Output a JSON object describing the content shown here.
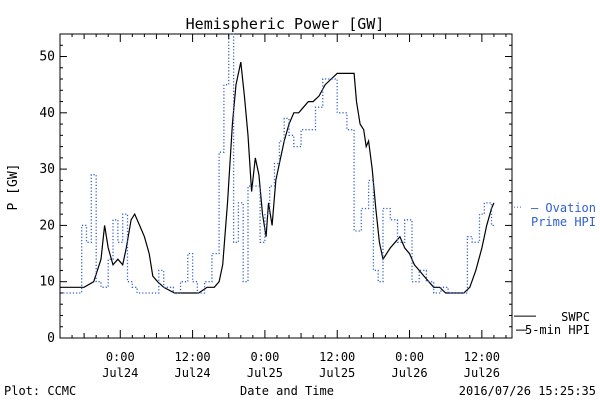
{
  "chart_data": {
    "type": "line",
    "title": "Hemispheric Power [GW]",
    "xlabel": "Date and Time",
    "ylabel": "P [GW]",
    "ylim": [
      0,
      54
    ],
    "y_ticks": [
      0,
      10,
      20,
      30,
      40,
      50
    ],
    "x_domain_hours": [
      -5,
      32.5
    ],
    "x_ticks": [
      {
        "t": 0,
        "time": "0:00",
        "date": "Jul24"
      },
      {
        "t": 6,
        "time": "12:00",
        "date": "Jul24"
      },
      {
        "t": 12,
        "time": "0:00",
        "date": "Jul25"
      },
      {
        "t": 18,
        "time": "12:00",
        "date": "Jul25"
      },
      {
        "t": 24,
        "time": "0:00",
        "date": "Jul26"
      },
      {
        "t": 30,
        "time": "12:00",
        "date": "Jul26"
      }
    ],
    "grid": false,
    "series": [
      {
        "name": "SWPC 5-min HPI",
        "color": "#000000",
        "style": "solid",
        "points": [
          [
            -5.0,
            9
          ],
          [
            -3.0,
            9
          ],
          [
            -2.2,
            10
          ],
          [
            -1.6,
            14
          ],
          [
            -1.3,
            20
          ],
          [
            -1.0,
            16
          ],
          [
            -0.6,
            13
          ],
          [
            -0.2,
            14
          ],
          [
            0.2,
            13
          ],
          [
            0.5,
            16
          ],
          [
            0.9,
            21
          ],
          [
            1.2,
            22
          ],
          [
            1.6,
            20
          ],
          [
            2.0,
            18
          ],
          [
            2.4,
            15
          ],
          [
            2.7,
            11
          ],
          [
            3.1,
            10
          ],
          [
            3.6,
            9
          ],
          [
            4.5,
            8
          ],
          [
            5.5,
            8
          ],
          [
            6.5,
            8
          ],
          [
            7.2,
            9
          ],
          [
            7.8,
            9
          ],
          [
            8.2,
            10
          ],
          [
            8.5,
            13
          ],
          [
            8.9,
            24
          ],
          [
            9.3,
            38
          ],
          [
            9.6,
            45
          ],
          [
            9.9,
            48
          ],
          [
            10.0,
            49
          ],
          [
            10.3,
            43
          ],
          [
            10.6,
            36
          ],
          [
            10.9,
            26
          ],
          [
            11.2,
            32
          ],
          [
            11.5,
            29
          ],
          [
            11.8,
            22
          ],
          [
            12.1,
            18
          ],
          [
            12.3,
            24
          ],
          [
            12.6,
            20
          ],
          [
            12.9,
            28
          ],
          [
            13.2,
            31
          ],
          [
            13.6,
            35
          ],
          [
            14.0,
            38
          ],
          [
            14.4,
            40
          ],
          [
            14.8,
            40
          ],
          [
            15.2,
            41
          ],
          [
            15.6,
            42
          ],
          [
            16.0,
            42
          ],
          [
            16.5,
            43
          ],
          [
            17.0,
            45
          ],
          [
            17.5,
            46
          ],
          [
            18.0,
            47
          ],
          [
            18.5,
            47
          ],
          [
            19.4,
            47
          ],
          [
            19.6,
            42
          ],
          [
            19.9,
            38
          ],
          [
            20.2,
            37
          ],
          [
            20.4,
            34
          ],
          [
            20.6,
            35
          ],
          [
            20.9,
            30
          ],
          [
            21.2,
            23
          ],
          [
            21.5,
            17
          ],
          [
            21.8,
            14
          ],
          [
            22.1,
            15
          ],
          [
            22.4,
            16
          ],
          [
            22.8,
            17
          ],
          [
            23.2,
            18
          ],
          [
            23.6,
            16
          ],
          [
            24.0,
            15
          ],
          [
            24.4,
            13
          ],
          [
            24.8,
            12
          ],
          [
            25.2,
            11
          ],
          [
            25.6,
            10
          ],
          [
            26.0,
            9
          ],
          [
            26.5,
            9
          ],
          [
            27.0,
            8
          ],
          [
            28.5,
            8
          ],
          [
            29.0,
            9
          ],
          [
            29.5,
            12
          ],
          [
            30.0,
            16
          ],
          [
            30.4,
            20
          ],
          [
            30.8,
            23
          ],
          [
            31.0,
            24
          ]
        ]
      },
      {
        "name": "Ovation Prime HPI",
        "color": "#3060d0",
        "style": "dotted",
        "points": [
          [
            -5.0,
            8
          ],
          [
            -3.2,
            8
          ],
          [
            -3.2,
            20
          ],
          [
            -2.8,
            20
          ],
          [
            -2.8,
            17
          ],
          [
            -2.4,
            17
          ],
          [
            -2.4,
            29
          ],
          [
            -2.0,
            29
          ],
          [
            -2.0,
            10
          ],
          [
            -1.6,
            10
          ],
          [
            -1.6,
            9
          ],
          [
            -1.0,
            9
          ],
          [
            -1.0,
            14
          ],
          [
            -0.6,
            14
          ],
          [
            -0.6,
            21
          ],
          [
            -0.2,
            21
          ],
          [
            -0.2,
            17
          ],
          [
            0.2,
            17
          ],
          [
            0.2,
            22
          ],
          [
            0.6,
            22
          ],
          [
            0.6,
            10
          ],
          [
            1.0,
            10
          ],
          [
            1.0,
            9
          ],
          [
            1.4,
            9
          ],
          [
            1.4,
            8
          ],
          [
            3.2,
            8
          ],
          [
            3.2,
            12
          ],
          [
            3.6,
            12
          ],
          [
            3.6,
            9
          ],
          [
            4.4,
            9
          ],
          [
            4.4,
            8
          ],
          [
            5.0,
            8
          ],
          [
            5.0,
            10
          ],
          [
            5.6,
            10
          ],
          [
            5.6,
            15
          ],
          [
            6.0,
            15
          ],
          [
            6.0,
            10
          ],
          [
            6.4,
            10
          ],
          [
            6.4,
            8
          ],
          [
            7.0,
            8
          ],
          [
            7.0,
            10
          ],
          [
            7.6,
            10
          ],
          [
            7.6,
            15
          ],
          [
            8.2,
            15
          ],
          [
            8.2,
            33
          ],
          [
            8.6,
            33
          ],
          [
            8.6,
            45
          ],
          [
            9.0,
            45
          ],
          [
            9.0,
            54
          ],
          [
            9.4,
            54
          ],
          [
            9.4,
            17
          ],
          [
            9.8,
            17
          ],
          [
            9.8,
            24
          ],
          [
            10.2,
            24
          ],
          [
            10.2,
            10
          ],
          [
            10.6,
            10
          ],
          [
            10.6,
            27
          ],
          [
            11.0,
            27
          ],
          [
            11.0,
            27
          ],
          [
            11.6,
            27
          ],
          [
            11.6,
            17
          ],
          [
            12.0,
            17
          ],
          [
            12.0,
            22
          ],
          [
            12.4,
            22
          ],
          [
            12.4,
            27
          ],
          [
            12.8,
            27
          ],
          [
            12.8,
            31
          ],
          [
            13.2,
            31
          ],
          [
            13.2,
            35
          ],
          [
            13.6,
            35
          ],
          [
            13.6,
            39
          ],
          [
            14.0,
            39
          ],
          [
            14.0,
            36
          ],
          [
            14.4,
            36
          ],
          [
            14.4,
            34
          ],
          [
            15.0,
            34
          ],
          [
            15.0,
            37
          ],
          [
            15.6,
            37
          ],
          [
            15.6,
            37
          ],
          [
            16.2,
            37
          ],
          [
            16.2,
            41
          ],
          [
            16.8,
            41
          ],
          [
            16.8,
            46
          ],
          [
            17.4,
            46
          ],
          [
            17.4,
            46
          ],
          [
            18.0,
            46
          ],
          [
            18.0,
            40
          ],
          [
            18.8,
            40
          ],
          [
            18.8,
            37
          ],
          [
            19.4,
            37
          ],
          [
            19.4,
            19
          ],
          [
            20.0,
            19
          ],
          [
            20.0,
            23
          ],
          [
            20.6,
            23
          ],
          [
            20.6,
            28
          ],
          [
            21.0,
            28
          ],
          [
            21.0,
            12
          ],
          [
            21.4,
            12
          ],
          [
            21.4,
            10
          ],
          [
            21.8,
            10
          ],
          [
            21.8,
            23
          ],
          [
            22.4,
            23
          ],
          [
            22.4,
            21
          ],
          [
            23.0,
            21
          ],
          [
            23.0,
            17
          ],
          [
            23.6,
            17
          ],
          [
            23.6,
            21
          ],
          [
            24.2,
            21
          ],
          [
            24.2,
            10
          ],
          [
            24.8,
            10
          ],
          [
            24.8,
            12
          ],
          [
            25.4,
            12
          ],
          [
            25.4,
            10
          ],
          [
            26.0,
            10
          ],
          [
            26.0,
            8
          ],
          [
            26.6,
            8
          ],
          [
            26.6,
            9
          ],
          [
            27.2,
            9
          ],
          [
            27.2,
            8
          ],
          [
            28.8,
            8
          ],
          [
            28.8,
            18
          ],
          [
            29.2,
            18
          ],
          [
            29.2,
            17
          ],
          [
            29.8,
            17
          ],
          [
            29.8,
            22
          ],
          [
            30.2,
            22
          ],
          [
            30.2,
            24
          ],
          [
            30.8,
            24
          ],
          [
            30.8,
            20
          ],
          [
            31.0,
            20
          ]
        ]
      }
    ],
    "legend": {
      "placement": "right",
      "entries": [
        {
          "series": "Ovation Prime HPI",
          "line1": "— Ovation",
          "line2": "Prime HPI",
          "color": "#3060d0"
        },
        {
          "series": "SWPC 5-min HPI",
          "line1": "SWPC",
          "line2": "5-min HPI",
          "color": "#000000"
        }
      ]
    }
  },
  "footer": {
    "left": "Plot: CCMC",
    "center": "Date and Time",
    "right": "2016/07/26 15:25:35"
  }
}
